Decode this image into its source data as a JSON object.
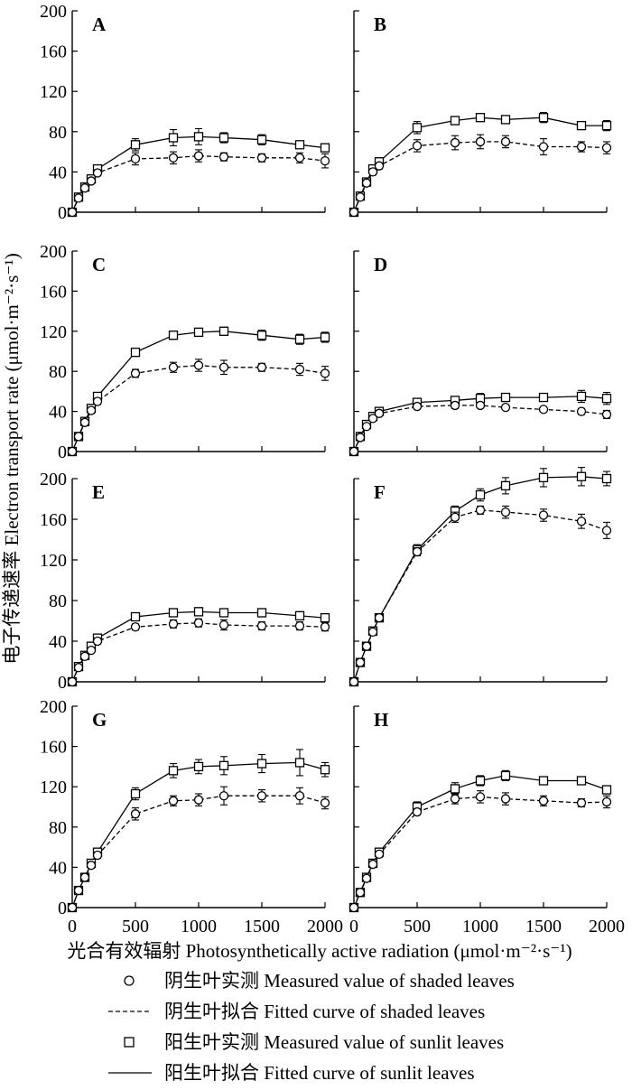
{
  "chart_data": {
    "type": "line",
    "ylabel": "电子传递速率 Electron transport rate (μmol·m⁻²·s⁻¹)",
    "xlabel": "光合有效辐射 Photosynthetically active radiation (μmol·m⁻²·s⁻¹)",
    "xlim": [
      0,
      2000
    ],
    "ylim": [
      0,
      200
    ],
    "x_ticks": [
      "0",
      "500",
      "1000",
      "1500",
      "2000"
    ],
    "y_ticks": [
      "0",
      "40",
      "80",
      "120",
      "160",
      "200"
    ],
    "grid": false,
    "legend_position": "bottom",
    "legend": [
      {
        "series": "shaded",
        "kind": "marker",
        "label": "阴生叶实测 Measured value of shaded leaves"
      },
      {
        "series": "shaded",
        "kind": "line",
        "label": "阴生叶拟合 Fitted curve of shaded leaves"
      },
      {
        "series": "sunlit",
        "kind": "marker",
        "label": "阳生叶实测 Measured value of sunlit leaves"
      },
      {
        "series": "sunlit",
        "kind": "line",
        "label": "阳生叶拟合 Fitted curve of sunlit leaves"
      }
    ],
    "x": [
      0,
      50,
      100,
      150,
      200,
      500,
      800,
      1000,
      1200,
      1500,
      1800,
      2000
    ],
    "panels": [
      {
        "label": "A",
        "shaded": {
          "values": [
            0,
            14,
            24,
            31,
            39,
            53,
            54,
            56,
            55,
            54,
            54,
            51
          ],
          "err": [
            0,
            2,
            2,
            2,
            3,
            6,
            6,
            6,
            4,
            4,
            5,
            7
          ]
        },
        "sunlit": {
          "values": [
            0,
            15,
            25,
            33,
            43,
            67,
            74,
            75,
            74,
            72,
            67,
            64
          ],
          "err": [
            0,
            2,
            2,
            2,
            3,
            6,
            8,
            8,
            5,
            5,
            3,
            3
          ]
        }
      },
      {
        "label": "B",
        "shaded": {
          "values": [
            0,
            15,
            29,
            40,
            46,
            66,
            69,
            70,
            70,
            65,
            65,
            64
          ],
          "err": [
            0,
            2,
            3,
            3,
            3,
            6,
            7,
            7,
            6,
            8,
            5,
            6
          ]
        },
        "sunlit": {
          "values": [
            0,
            16,
            30,
            43,
            50,
            84,
            91,
            94,
            92,
            94,
            86,
            86
          ],
          "err": [
            0,
            2,
            3,
            3,
            4,
            6,
            4,
            3,
            3,
            5,
            2,
            5
          ]
        }
      },
      {
        "label": "C",
        "shaded": {
          "values": [
            0,
            15,
            29,
            41,
            50,
            78,
            84,
            86,
            84,
            84,
            82,
            78
          ],
          "err": [
            0,
            2,
            3,
            3,
            3,
            4,
            5,
            6,
            7,
            4,
            6,
            7
          ]
        },
        "sunlit": {
          "values": [
            0,
            15,
            30,
            43,
            55,
            99,
            116,
            119,
            120,
            116,
            112,
            114
          ],
          "err": [
            0,
            2,
            3,
            3,
            3,
            4,
            4,
            4,
            4,
            5,
            5,
            5
          ]
        }
      },
      {
        "label": "D",
        "shaded": {
          "values": [
            0,
            14,
            25,
            33,
            38,
            45,
            46,
            46,
            44,
            42,
            40,
            37
          ],
          "err": [
            0,
            2,
            2,
            2,
            2,
            2,
            3,
            2,
            2,
            2,
            3,
            4
          ]
        },
        "sunlit": {
          "values": [
            0,
            15,
            27,
            35,
            40,
            49,
            51,
            53,
            54,
            54,
            55,
            53
          ],
          "err": [
            0,
            2,
            2,
            2,
            2,
            3,
            3,
            5,
            4,
            3,
            6,
            6
          ]
        }
      },
      {
        "label": "E",
        "shaded": {
          "values": [
            0,
            14,
            25,
            31,
            40,
            54,
            57,
            58,
            56,
            55,
            55,
            54
          ],
          "err": [
            0,
            2,
            2,
            2,
            3,
            3,
            4,
            4,
            5,
            4,
            4,
            4
          ]
        },
        "sunlit": {
          "values": [
            0,
            15,
            26,
            35,
            43,
            64,
            68,
            69,
            68,
            68,
            65,
            63
          ],
          "err": [
            0,
            2,
            2,
            2,
            3,
            3,
            3,
            4,
            3,
            4,
            4,
            4
          ]
        }
      },
      {
        "label": "F",
        "shaded": {
          "values": [
            0,
            19,
            35,
            49,
            63,
            128,
            162,
            169,
            167,
            164,
            158,
            149
          ],
          "err": [
            0,
            2,
            3,
            3,
            3,
            4,
            5,
            4,
            6,
            6,
            7,
            8
          ]
        },
        "sunlit": {
          "values": [
            0,
            19,
            35,
            50,
            63,
            130,
            168,
            184,
            193,
            201,
            202,
            200
          ],
          "err": [
            0,
            2,
            3,
            3,
            3,
            5,
            5,
            6,
            8,
            9,
            9,
            7
          ]
        }
      },
      {
        "label": "G",
        "shaded": {
          "values": [
            0,
            17,
            30,
            42,
            52,
            93,
            106,
            107,
            111,
            111,
            111,
            104
          ],
          "err": [
            0,
            2,
            3,
            3,
            3,
            6,
            5,
            6,
            9,
            6,
            8,
            6
          ]
        },
        "sunlit": {
          "values": [
            0,
            17,
            30,
            44,
            55,
            113,
            136,
            140,
            141,
            143,
            144,
            137
          ],
          "err": [
            0,
            2,
            3,
            3,
            4,
            6,
            7,
            7,
            9,
            9,
            13,
            7
          ]
        }
      },
      {
        "label": "H",
        "shaded": {
          "values": [
            0,
            15,
            29,
            43,
            53,
            95,
            108,
            110,
            108,
            106,
            104,
            105
          ],
          "err": [
            0,
            2,
            3,
            3,
            3,
            3,
            5,
            6,
            6,
            5,
            4,
            6
          ]
        },
        "sunlit": {
          "values": [
            0,
            15,
            30,
            44,
            55,
            100,
            118,
            126,
            131,
            126,
            126,
            117
          ],
          "err": [
            0,
            2,
            3,
            3,
            4,
            5,
            6,
            5,
            5,
            3,
            3,
            4
          ]
        }
      }
    ]
  }
}
